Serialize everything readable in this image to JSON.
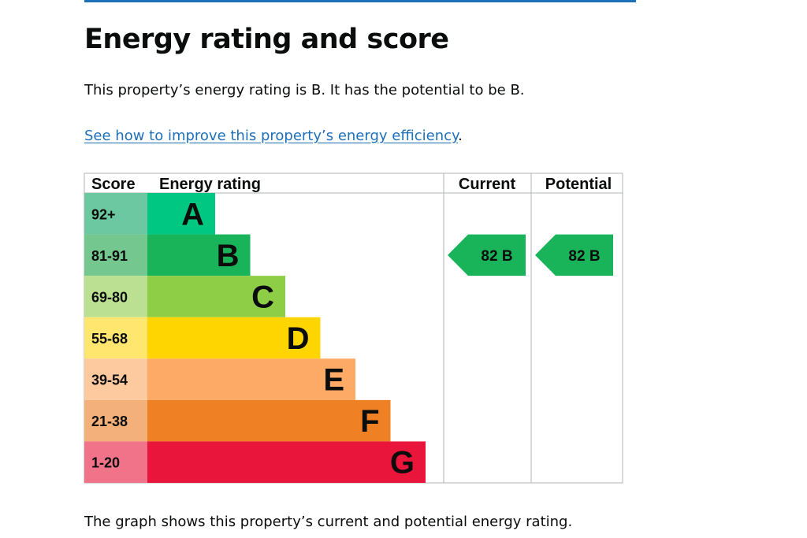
{
  "heading": "Energy rating and score",
  "summary": "This property’s energy rating is B. It has the potential to be B.",
  "improve_link": "See how to improve this property’s energy efficiency",
  "improve_link_suffix": ".",
  "footer_text": "The graph shows this property’s current and potential energy rating.",
  "colors": {
    "link": "#1d70b8",
    "grid": "#b1b4b6"
  },
  "chart_data": {
    "type": "bar",
    "columns": [
      "Score",
      "Energy rating",
      "Current",
      "Potential"
    ],
    "bands": [
      {
        "letter": "A",
        "score": "92+",
        "color": "#00c781",
        "score_bg": "#6cc8a0",
        "level": 1
      },
      {
        "letter": "B",
        "score": "81-91",
        "color": "#19b459",
        "score_bg": "#74c88f",
        "level": 2
      },
      {
        "letter": "C",
        "score": "69-80",
        "color": "#8dce46",
        "score_bg": "#bce091",
        "level": 3
      },
      {
        "letter": "D",
        "score": "55-68",
        "color": "#ffd500",
        "score_bg": "#ffe66e",
        "level": 4
      },
      {
        "letter": "E",
        "score": "39-54",
        "color": "#fcaa65",
        "score_bg": "#fdca9f",
        "level": 5
      },
      {
        "letter": "F",
        "score": "21-38",
        "color": "#ef8023",
        "score_bg": "#f4b07a",
        "level": 6
      },
      {
        "letter": "G",
        "score": "1-20",
        "color": "#e9153b",
        "score_bg": "#f07389",
        "level": 7
      }
    ],
    "current": {
      "score": 82,
      "band": "B",
      "label": "82  B",
      "color": "#19b459"
    },
    "potential": {
      "score": 82,
      "band": "B",
      "label": "82  B",
      "color": "#19b459"
    }
  }
}
